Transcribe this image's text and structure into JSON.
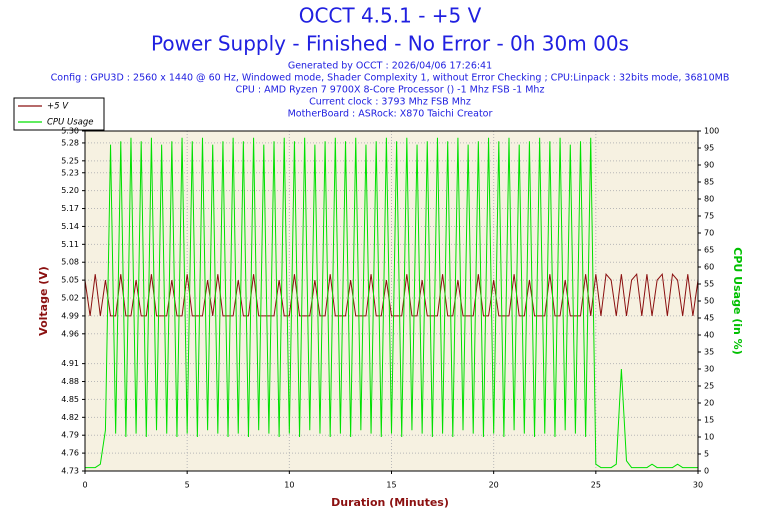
{
  "chart_data": {
    "type": "line",
    "title": "OCCT 4.5.1 - +5 V",
    "subtitle": "Power Supply - Finished - No Error - 0h 30m 00s",
    "info": [
      "Generated by OCCT : 2026/04/06 17:26:41",
      "Config : GPU3D : 2560 x 1440 @ 60 Hz, Windowed mode, Shader Complexity 1, without Error Checking ; CPU:Linpack : 32bits mode, 36810MB",
      "CPU : AMD Ryzen 7 9700X 8-Core Processor () -1 Mhz FSB -1 Mhz",
      "Current clock : 3793 Mhz FSB  Mhz",
      "MotherBoard : ASRock: X870 Taichi Creator"
    ],
    "xlabel": "Duration (Minutes)",
    "ylabel": "Voltage (V)",
    "y2label": "CPU Usage (in %)",
    "xlim": [
      0,
      30
    ],
    "xticks": [
      0,
      5,
      10,
      15,
      20,
      25,
      30
    ],
    "ylim": [
      4.73,
      5.3
    ],
    "yticks": [
      4.73,
      4.76,
      4.79,
      4.82,
      4.85,
      4.88,
      4.91,
      4.96,
      4.99,
      5.02,
      5.05,
      5.08,
      5.11,
      5.14,
      5.17,
      {
        "value": 5.2,
        "label": "5.20"
      },
      5.23,
      5.25,
      5.28,
      {
        "value": 5.3,
        "label": "5.30"
      }
    ],
    "y2lim": [
      0,
      100
    ],
    "y2ticks": [
      0,
      5,
      10,
      15,
      20,
      25,
      30,
      35,
      40,
      45,
      50,
      55,
      60,
      65,
      70,
      75,
      80,
      85,
      90,
      95,
      100
    ],
    "grid": true,
    "legend": "upper left",
    "x": [
      0,
      0.25,
      0.5,
      0.75,
      1,
      1.25,
      1.5,
      1.75,
      2,
      2.25,
      2.5,
      2.75,
      3,
      3.25,
      3.5,
      3.75,
      4,
      4.25,
      4.5,
      4.75,
      5,
      5.25,
      5.5,
      5.75,
      6,
      6.25,
      6.5,
      6.75,
      7,
      7.25,
      7.5,
      7.75,
      8,
      8.25,
      8.5,
      8.75,
      9,
      9.25,
      9.5,
      9.75,
      10,
      10.25,
      10.5,
      10.75,
      11,
      11.25,
      11.5,
      11.75,
      12,
      12.25,
      12.5,
      12.75,
      13,
      13.25,
      13.5,
      13.75,
      14,
      14.25,
      14.5,
      14.75,
      15,
      15.25,
      15.5,
      15.75,
      16,
      16.25,
      16.5,
      16.75,
      17,
      17.25,
      17.5,
      17.75,
      18,
      18.25,
      18.5,
      18.75,
      19,
      19.25,
      19.5,
      19.75,
      20,
      20.25,
      20.5,
      20.75,
      21,
      21.25,
      21.5,
      21.75,
      22,
      22.25,
      22.5,
      22.75,
      23,
      23.25,
      23.5,
      23.75,
      24,
      24.25,
      24.5,
      24.75,
      25,
      25.25,
      25.5,
      25.75,
      26,
      26.25,
      26.5,
      26.75,
      27,
      27.25,
      27.5,
      27.75,
      28,
      28.25,
      28.5,
      28.75,
      29,
      29.25,
      29.5,
      29.75,
      30
    ],
    "series": [
      {
        "name": "+5 V",
        "color": "#8b1010",
        "axis": "y",
        "values": [
          5.05,
          4.99,
          5.06,
          4.99,
          5.05,
          4.99,
          4.99,
          5.06,
          4.99,
          4.99,
          5.05,
          4.99,
          4.99,
          5.06,
          4.99,
          4.99,
          4.99,
          5.05,
          4.99,
          4.99,
          5.06,
          4.99,
          4.99,
          4.99,
          5.05,
          4.99,
          5.06,
          4.99,
          4.99,
          4.99,
          5.05,
          4.99,
          4.99,
          5.06,
          4.99,
          4.99,
          4.99,
          4.99,
          5.05,
          4.99,
          4.99,
          5.06,
          4.99,
          4.99,
          4.99,
          5.05,
          4.99,
          4.99,
          5.06,
          4.99,
          4.99,
          4.99,
          5.05,
          4.99,
          4.99,
          4.99,
          5.06,
          4.99,
          4.99,
          5.05,
          4.99,
          4.99,
          4.99,
          5.06,
          4.99,
          4.99,
          5.05,
          4.99,
          4.99,
          4.99,
          5.06,
          4.99,
          4.99,
          5.05,
          4.99,
          4.99,
          4.99,
          5.06,
          4.99,
          4.99,
          5.05,
          4.99,
          4.99,
          4.99,
          5.06,
          4.99,
          4.99,
          5.05,
          4.99,
          4.99,
          4.99,
          5.06,
          4.99,
          4.99,
          5.05,
          4.99,
          4.99,
          4.99,
          5.06,
          4.99,
          5.06,
          4.99,
          5.06,
          5.05,
          4.99,
          5.06,
          4.99,
          5.05,
          5.06,
          4.99,
          5.06,
          4.99,
          5.05,
          5.06,
          4.99,
          5.06,
          5.05,
          4.99,
          5.06,
          4.99,
          5.05
        ]
      },
      {
        "name": "CPU Usage",
        "color": "#00e000",
        "axis": "y2",
        "values": [
          1,
          1,
          1,
          2,
          12,
          96,
          11,
          97,
          10,
          98,
          11,
          97,
          10,
          98,
          12,
          96,
          11,
          97,
          10,
          98,
          11,
          97,
          10,
          98,
          12,
          96,
          11,
          97,
          10,
          98,
          11,
          97,
          10,
          98,
          12,
          96,
          11,
          97,
          10,
          98,
          11,
          97,
          10,
          98,
          12,
          96,
          11,
          97,
          10,
          98,
          11,
          97,
          10,
          98,
          12,
          96,
          11,
          97,
          10,
          98,
          11,
          97,
          10,
          98,
          12,
          96,
          11,
          97,
          10,
          98,
          11,
          97,
          10,
          98,
          12,
          96,
          11,
          97,
          10,
          98,
          11,
          97,
          10,
          98,
          12,
          96,
          11,
          97,
          10,
          98,
          11,
          97,
          10,
          98,
          12,
          96,
          11,
          97,
          10,
          98,
          2,
          1,
          1,
          1,
          2,
          30,
          3,
          1,
          1,
          1,
          1,
          2,
          1,
          1,
          1,
          1,
          2,
          1,
          1,
          1,
          1
        ]
      }
    ]
  }
}
